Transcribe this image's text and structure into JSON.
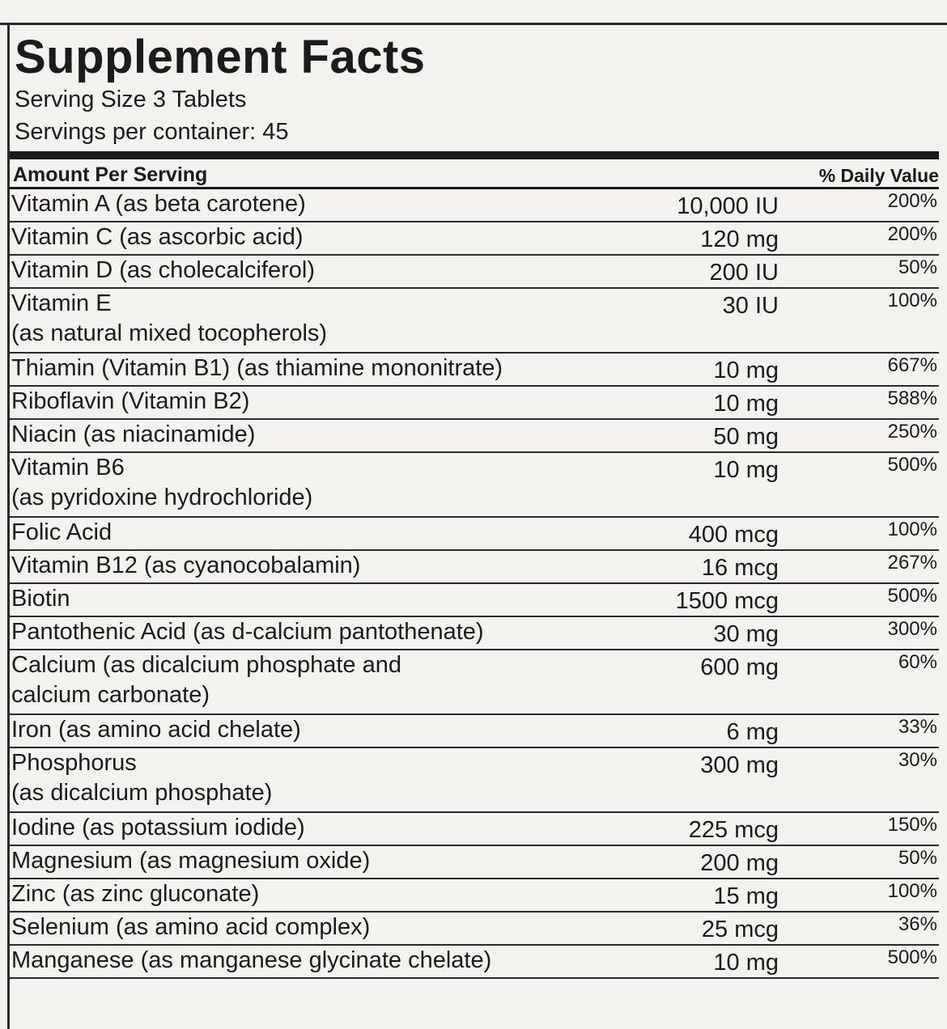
{
  "title": "Supplement Facts",
  "serving_size": "Serving Size 3 Tablets",
  "servings_per_container": "Servings per container: 45",
  "header": {
    "amount": "Amount Per Serving",
    "daily_value": "% Daily Value"
  },
  "rows": [
    {
      "name": "Vitamin A (as beta carotene)",
      "amount": "10,000 IU",
      "dv": "200%"
    },
    {
      "name": "Vitamin C (as ascorbic acid)",
      "amount": "120 mg",
      "dv": "200%"
    },
    {
      "name": "Vitamin D (as cholecalciferol)",
      "amount": "200 IU",
      "dv": "50%"
    },
    {
      "name": "Vitamin E\n(as natural mixed tocopherols)",
      "amount": "30 IU",
      "dv": "100%"
    },
    {
      "name": "Thiamin (Vitamin B1) (as thiamine mononitrate)",
      "amount": "10 mg",
      "dv": "667%"
    },
    {
      "name": "Riboflavin (Vitamin B2)",
      "amount": "10 mg",
      "dv": "588%"
    },
    {
      "name": "Niacin (as niacinamide)",
      "amount": "50 mg",
      "dv": "250%"
    },
    {
      "name": "Vitamin B6\n(as pyridoxine hydrochloride)",
      "amount": "10 mg",
      "dv": "500%"
    },
    {
      "name": "Folic Acid",
      "amount": "400 mcg",
      "dv": "100%"
    },
    {
      "name": "Vitamin B12 (as cyanocobalamin)",
      "amount": "16 mcg",
      "dv": "267%"
    },
    {
      "name": "Biotin",
      "amount": "1500 mcg",
      "dv": "500%"
    },
    {
      "name": "Pantothenic Acid (as d-calcium pantothenate)",
      "amount": "30 mg",
      "dv": "300%"
    },
    {
      "name": "Calcium (as dicalcium phosphate and\ncalcium carbonate)",
      "amount": "600 mg",
      "dv": "60%"
    },
    {
      "name": "Iron (as amino acid chelate)",
      "amount": "6 mg",
      "dv": "33%"
    },
    {
      "name": "Phosphorus\n(as dicalcium phosphate)",
      "amount": "300 mg",
      "dv": "30%"
    },
    {
      "name": "Iodine (as potassium iodide)",
      "amount": "225 mcg",
      "dv": "150%"
    },
    {
      "name": "Magnesium (as magnesium oxide)",
      "amount": "200 mg",
      "dv": "50%"
    },
    {
      "name": "Zinc (as zinc gluconate)",
      "amount": "15 mg",
      "dv": "100%"
    },
    {
      "name": "Selenium (as amino acid complex)",
      "amount": "25 mcg",
      "dv": "36%"
    },
    {
      "name": "Manganese (as manganese glycinate chelate)",
      "amount": "10 mg",
      "dv": "500%"
    }
  ]
}
